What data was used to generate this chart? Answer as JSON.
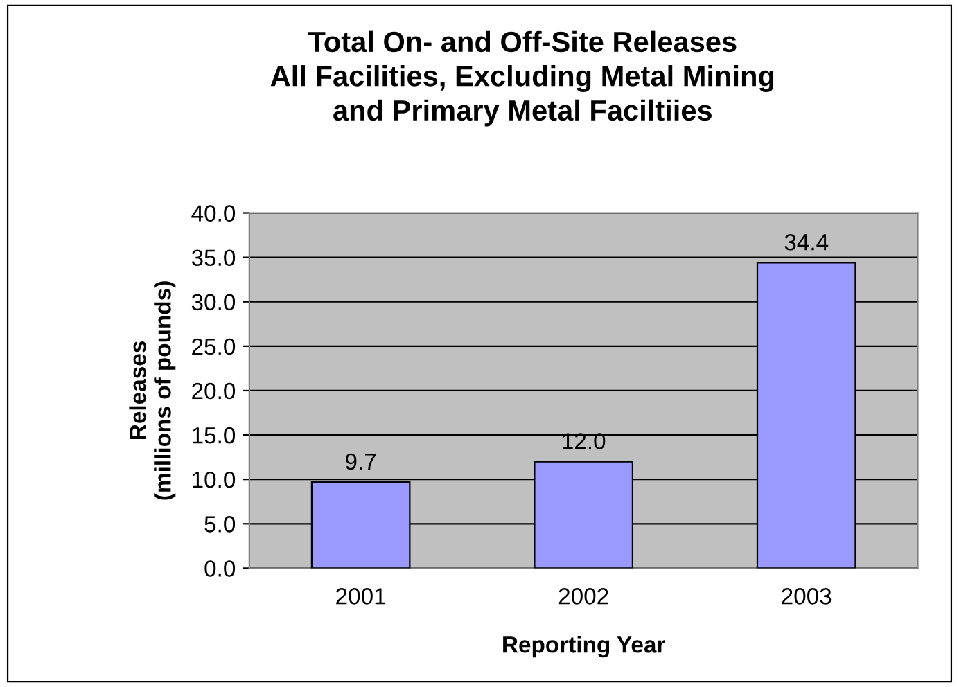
{
  "chart_data": {
    "type": "bar",
    "title": "Total On- and Off-Site Releases\nAll Facilities, Excluding Metal Mining\nand Primary Metal Faciltiies",
    "xlabel": "Reporting Year",
    "ylabel": "Releases\n(millions of pounds)",
    "categories": [
      "2001",
      "2002",
      "2003"
    ],
    "values": [
      9.7,
      12.0,
      34.4
    ],
    "value_labels": [
      "9.7",
      "12.0",
      "34.4"
    ],
    "color": "#9999ff",
    "ylim": [
      0,
      40
    ],
    "yticks": [
      {
        "value": 0,
        "label": "0.0"
      },
      {
        "value": 5,
        "label": "5.0"
      },
      {
        "value": 10,
        "label": "10.0"
      },
      {
        "value": 15,
        "label": "15.0"
      },
      {
        "value": 20,
        "label": "20.0"
      },
      {
        "value": 25,
        "label": "25.0"
      },
      {
        "value": 30,
        "label": "30.0"
      },
      {
        "value": 35,
        "label": "35.0"
      },
      {
        "value": 40,
        "label": "40.0"
      }
    ],
    "grid": "y",
    "legend": false
  }
}
